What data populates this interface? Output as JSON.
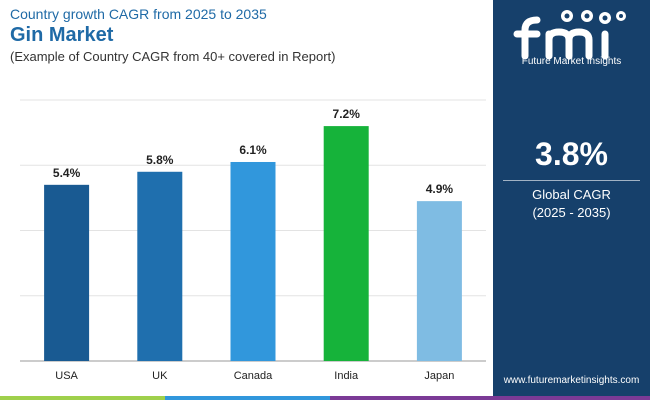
{
  "header": {
    "subtitle": "Country growth CAGR from 2025 to 2035",
    "title": "Gin Market",
    "note": "(Example of Country CAGR from 40+ covered in Report)"
  },
  "chart_data": {
    "type": "bar",
    "title": "Gin Market",
    "categories": [
      "USA",
      "UK",
      "Canada",
      "India",
      "Japan"
    ],
    "values": [
      5.4,
      5.8,
      6.1,
      7.2,
      4.9
    ],
    "value_labels": [
      "5.4%",
      "5.8%",
      "6.1%",
      "7.2%",
      "4.9%"
    ],
    "colors": [
      "#195a92",
      "#1f6fae",
      "#3197dc",
      "#16b33a",
      "#7fbce3"
    ],
    "ylim": [
      0,
      8
    ],
    "grid": true,
    "xlabel": "",
    "ylabel": ""
  },
  "panel": {
    "logo_text": "Future Market Insights",
    "cagr_value": "3.8%",
    "cagr_label": "Global CAGR",
    "cagr_period": "(2025 - 2035)",
    "website": "www.futuremarketinsights.com"
  },
  "colors": {
    "panel_bg": "#16406b",
    "title": "#1f6aa6",
    "bottom_bar": [
      "#9fd04c",
      "#3197dc",
      "#7b3a96"
    ]
  }
}
